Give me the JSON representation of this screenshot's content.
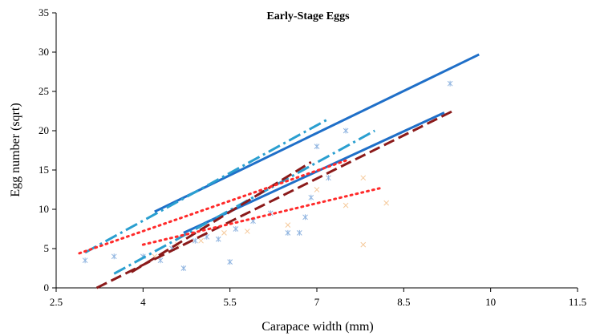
{
  "chart_data": {
    "type": "scatter",
    "title": "Early-Stage Eggs",
    "xlabel": "Carapace width (mm)",
    "ylabel": "Egg number (sqrt)",
    "xlim": [
      2.5,
      11.5
    ],
    "ylim": [
      0,
      35
    ],
    "xticks": [
      "2.5",
      "4",
      "5.5",
      "7",
      "8.5",
      "10",
      "11.5"
    ],
    "yticks": [
      "0",
      "5",
      "10",
      "15",
      "20",
      "25",
      "30",
      "35"
    ],
    "grid": false,
    "legend": "none",
    "scatter_points": [
      {
        "color": "#8fb4e0",
        "marker": "asterisk",
        "points": [
          [
            3.0,
            3.5
          ],
          [
            3.5,
            4.0
          ],
          [
            4.0,
            4.0
          ],
          [
            4.3,
            3.5
          ],
          [
            4.5,
            5.0
          ],
          [
            4.7,
            2.5
          ],
          [
            4.9,
            6.0
          ],
          [
            5.1,
            6.5
          ],
          [
            5.3,
            6.2
          ],
          [
            5.5,
            3.3
          ],
          [
            5.6,
            7.5
          ],
          [
            5.9,
            8.5
          ],
          [
            6.2,
            9.5
          ],
          [
            6.5,
            7.0
          ],
          [
            6.7,
            7.0
          ],
          [
            6.8,
            9.0
          ],
          [
            6.9,
            11.5
          ],
          [
            7.0,
            18.0
          ],
          [
            7.2,
            14.0
          ],
          [
            7.5,
            20.0
          ],
          [
            9.3,
            26.0
          ]
        ]
      },
      {
        "color": "#f5c99a",
        "marker": "x",
        "points": [
          [
            4.2,
            4.0
          ],
          [
            4.6,
            5.5
          ],
          [
            5.0,
            6.0
          ],
          [
            5.4,
            7.0
          ],
          [
            5.8,
            7.2
          ],
          [
            6.5,
            8.0
          ],
          [
            7.0,
            12.5
          ],
          [
            7.5,
            10.5
          ],
          [
            7.8,
            14.0
          ],
          [
            7.8,
            5.5
          ],
          [
            8.2,
            10.8
          ]
        ]
      }
    ],
    "series": [
      {
        "color": "#1f6fc8",
        "dash": "solid",
        "width": 3,
        "x": [
          4.2,
          9.8
        ],
        "y": [
          9.7,
          29.7
        ]
      },
      {
        "color": "#1f6fc8",
        "dash": "solid",
        "width": 3,
        "x": [
          4.7,
          9.2
        ],
        "y": [
          7.0,
          22.3
        ]
      },
      {
        "color": "#2a9fd0",
        "dash": "dashdot",
        "width": 3,
        "x": [
          3.0,
          7.2
        ],
        "y": [
          4.5,
          21.5
        ]
      },
      {
        "color": "#2a9fd0",
        "dash": "dashdot",
        "width": 3,
        "x": [
          3.5,
          8.0
        ],
        "y": [
          1.8,
          20.0
        ]
      },
      {
        "color": "#8b1a1a",
        "dash": "dash",
        "width": 3,
        "x": [
          3.2,
          9.4
        ],
        "y": [
          0.0,
          22.7
        ]
      },
      {
        "color": "#8b1a1a",
        "dash": "dash",
        "width": 3,
        "x": [
          3.8,
          6.9
        ],
        "y": [
          2.0,
          16.0
        ]
      },
      {
        "color": "#ff2a2a",
        "dash": "dot",
        "width": 3,
        "x": [
          2.9,
          7.5
        ],
        "y": [
          4.4,
          16.2
        ]
      },
      {
        "color": "#ff2a2a",
        "dash": "dot",
        "width": 3,
        "x": [
          4.0,
          8.1
        ],
        "y": [
          5.5,
          12.7
        ]
      }
    ]
  }
}
